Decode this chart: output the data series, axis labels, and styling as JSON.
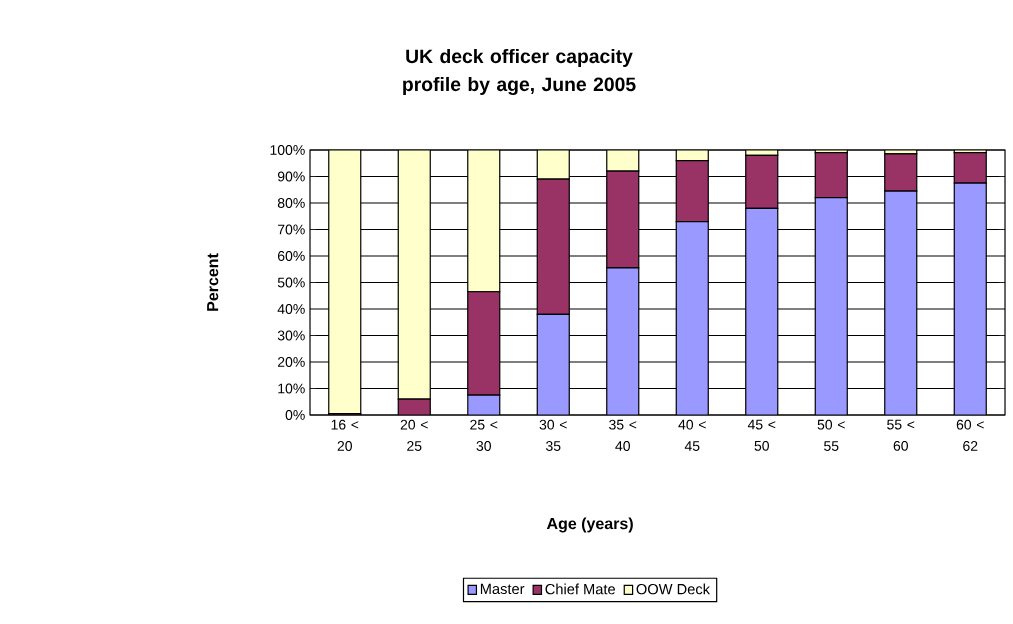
{
  "chart_data": {
    "type": "bar",
    "title": "UK deck officer capacity profile by age, June 2005",
    "xlabel": "Age (years)",
    "ylabel": "Percent",
    "categories": [
      "16 < 20",
      "20 < 25",
      "25 < 30",
      "30 < 35",
      "35 < 40",
      "40 < 45",
      "45 < 50",
      "50 < 55",
      "55 < 60",
      "60 < 62"
    ],
    "series": [
      {
        "name": "Master",
        "color": "#9999ff",
        "values": [
          0,
          0,
          7.5,
          38,
          55.5,
          73,
          78,
          82,
          84.5,
          87.5
        ]
      },
      {
        "name": "Chief Mate",
        "color": "#993366",
        "values": [
          0.5,
          6,
          39,
          51,
          36.5,
          23,
          20,
          17,
          14,
          11.5
        ]
      },
      {
        "name": "OOW Deck",
        "color": "#ffffcc",
        "values": [
          99.5,
          94,
          53.5,
          11,
          8,
          4,
          2,
          1,
          1.5,
          1
        ]
      }
    ],
    "stacked": true,
    "ylim": [
      0,
      100
    ],
    "yticks": [
      {
        "value": 0,
        "label": "0%"
      },
      {
        "value": 10,
        "label": "10%"
      },
      {
        "value": 20,
        "label": "20%"
      },
      {
        "value": 30,
        "label": "30%"
      },
      {
        "value": 40,
        "label": "40%"
      },
      {
        "value": 50,
        "label": "50%"
      },
      {
        "value": 60,
        "label": "60%"
      },
      {
        "value": 70,
        "label": "70%"
      },
      {
        "value": 80,
        "label": "80%"
      },
      {
        "value": 90,
        "label": "90%"
      },
      {
        "value": 100,
        "label": "100%"
      }
    ],
    "grid": "y",
    "legend": "bottom"
  }
}
